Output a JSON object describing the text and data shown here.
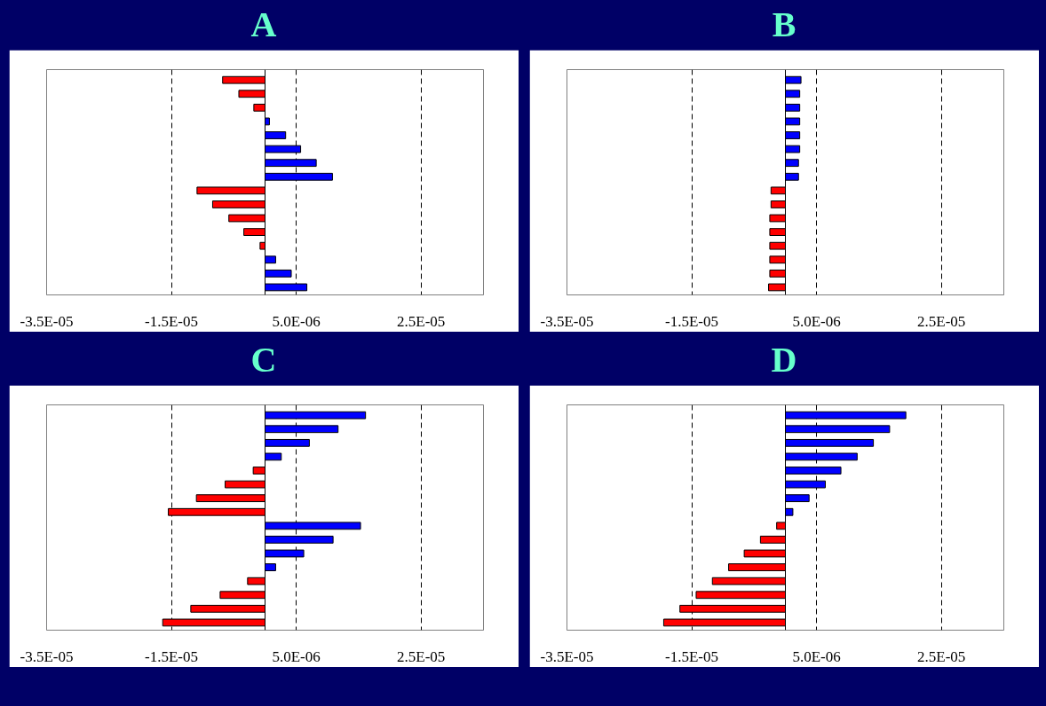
{
  "chart_data": [
    {
      "type": "bar",
      "orientation": "horizontal",
      "title": "A",
      "grid": "x",
      "categories": [
        null,
        null,
        null,
        null,
        null,
        null,
        null,
        null,
        null,
        null,
        null,
        null,
        null,
        null,
        null,
        null
      ],
      "values": [
        -6.8e-06,
        -4.2e-06,
        -1.8e-06,
        7e-07,
        3.3e-06,
        5.7e-06,
        8.2e-06,
        1.08e-05,
        -1.09e-05,
        -8.4e-06,
        -5.8e-06,
        -3.4e-06,
        -8e-07,
        1.7e-06,
        4.2e-06,
        6.7e-06
      ],
      "colors": [
        "#ff0000",
        "#ff0000",
        "#ff0000",
        "#0000ff",
        "#0000ff",
        "#0000ff",
        "#0000ff",
        "#0000ff",
        "#ff0000",
        "#ff0000",
        "#ff0000",
        "#ff0000",
        "#ff0000",
        "#0000ff",
        "#0000ff",
        "#0000ff"
      ],
      "xlim": [
        -3.5e-05,
        3.5e-05
      ],
      "xticks": [
        {
          "value": -3.5e-05,
          "label": "-3.5E-05"
        },
        {
          "value": -1.5e-05,
          "label": "-1.5E-05"
        },
        {
          "value": 5e-06,
          "label": "5.0E-06"
        },
        {
          "value": 2.5e-05,
          "label": "2.5E-05"
        }
      ]
    },
    {
      "type": "bar",
      "orientation": "horizontal",
      "title": "B",
      "grid": "x",
      "categories": [
        null,
        null,
        null,
        null,
        null,
        null,
        null,
        null,
        null,
        null,
        null,
        null,
        null,
        null,
        null,
        null
      ],
      "values": [
        2.5e-06,
        2.3e-06,
        2.3e-06,
        2.3e-06,
        2.3e-06,
        2.3e-06,
        2.1e-06,
        2.1e-06,
        -2.3e-06,
        -2.3e-06,
        -2.5e-06,
        -2.5e-06,
        -2.5e-06,
        -2.5e-06,
        -2.5e-06,
        -2.7e-06
      ],
      "colors": [
        "#0000ff",
        "#0000ff",
        "#0000ff",
        "#0000ff",
        "#0000ff",
        "#0000ff",
        "#0000ff",
        "#0000ff",
        "#ff0000",
        "#ff0000",
        "#ff0000",
        "#ff0000",
        "#ff0000",
        "#ff0000",
        "#ff0000",
        "#ff0000"
      ],
      "xlim": [
        -3.5e-05,
        3.5e-05
      ],
      "xticks": [
        {
          "value": -3.5e-05,
          "label": "-3.5E-05"
        },
        {
          "value": -1.5e-05,
          "label": "-1.5E-05"
        },
        {
          "value": 5e-06,
          "label": "5.0E-06"
        },
        {
          "value": 2.5e-05,
          "label": "2.5E-05"
        }
      ]
    },
    {
      "type": "bar",
      "orientation": "horizontal",
      "title": "C",
      "grid": "x",
      "categories": [
        null,
        null,
        null,
        null,
        null,
        null,
        null,
        null,
        null,
        null,
        null,
        null,
        null,
        null,
        null,
        null
      ],
      "values": [
        1.61e-05,
        1.17e-05,
        7.1e-06,
        2.6e-06,
        -1.9e-06,
        -6.4e-06,
        -1.1e-05,
        -1.55e-05,
        1.53e-05,
        1.09e-05,
        6.2e-06,
        1.7e-06,
        -2.8e-06,
        -7.2e-06,
        -1.19e-05,
        -1.64e-05
      ],
      "colors": [
        "#0000ff",
        "#0000ff",
        "#0000ff",
        "#0000ff",
        "#ff0000",
        "#ff0000",
        "#ff0000",
        "#ff0000",
        "#0000ff",
        "#0000ff",
        "#0000ff",
        "#0000ff",
        "#ff0000",
        "#ff0000",
        "#ff0000",
        "#ff0000"
      ],
      "xlim": [
        -3.5e-05,
        3.5e-05
      ],
      "xticks": [
        {
          "value": -3.5e-05,
          "label": "-3.5E-05"
        },
        {
          "value": -1.5e-05,
          "label": "-1.5E-05"
        },
        {
          "value": 5e-06,
          "label": "5.0E-06"
        },
        {
          "value": 2.5e-05,
          "label": "2.5E-05"
        }
      ]
    },
    {
      "type": "bar",
      "orientation": "horizontal",
      "title": "D",
      "grid": "x",
      "categories": [
        null,
        null,
        null,
        null,
        null,
        null,
        null,
        null,
        null,
        null,
        null,
        null,
        null,
        null,
        null,
        null
      ],
      "values": [
        1.93e-05,
        1.67e-05,
        1.41e-05,
        1.15e-05,
        8.9e-06,
        6.4e-06,
        3.8e-06,
        1.2e-06,
        -1.4e-06,
        -4e-06,
        -6.6e-06,
        -9.1e-06,
        -1.17e-05,
        -1.43e-05,
        -1.69e-05,
        -1.95e-05
      ],
      "colors": [
        "#0000ff",
        "#0000ff",
        "#0000ff",
        "#0000ff",
        "#0000ff",
        "#0000ff",
        "#0000ff",
        "#0000ff",
        "#ff0000",
        "#ff0000",
        "#ff0000",
        "#ff0000",
        "#ff0000",
        "#ff0000",
        "#ff0000",
        "#ff0000"
      ],
      "xlim": [
        -3.5e-05,
        3.5e-05
      ],
      "xticks": [
        {
          "value": -3.5e-05,
          "label": "-3.5E-05"
        },
        {
          "value": -1.5e-05,
          "label": "-1.5E-05"
        },
        {
          "value": 5e-06,
          "label": "5.0E-06"
        },
        {
          "value": 2.5e-05,
          "label": "2.5E-05"
        }
      ]
    }
  ]
}
